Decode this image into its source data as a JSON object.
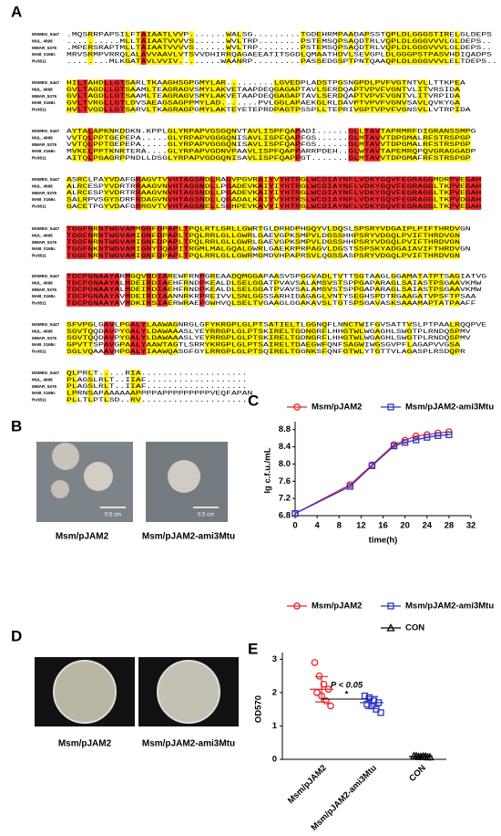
{
  "panels": {
    "A": {
      "label": "A",
      "names": [
        "MSMEG_5447",
        "MUL_4998",
        "MMAR_5376",
        "MAB_0168c",
        "Rv3811"
      ],
      "blocks": [
        [
          ".MQSRRPAPSILFTAIAATLVVP.......WALSG.........TGDEHRMPAADAPSSTQPLDLGGGSTIRELGLDEPS",
          "..........MLLTAIAATVVVVS......WVLTRP........PSTEMSQPSAQDTRLVQPLDLGGGVVVLGLDEPS..",
          ".MPERSRAPTMLLTAIAATVVVVS......WVLTRP........PSTEMSQPSAQDTRLVQPLDLGGGVVVLGLDEPS..",
          "MRVSRMPVRRQLALAVVAAVLVTSVVDHIRRQAGAEEATITSGDLQMAATHDVLSEVGPLDLGGGPSTPASVHDIQADPS",
          "........MLKGATAVLVVIV........WAANRP.........PASSEDGSPTPNTQAAQPLDLGGGVVVLELTDEPS.."
        ],
        [
          "HILTAHDLLGTSARLTKAAGHSGPGMYLAR.........LGVEDPLADSTPGSNGPDLPVFVGTNTVLLTTKPEA",
          "GVLTAGDLLGTSAAMLTEAGRAGVSMYLAKVETAAPDEQGAGAPTAVLSERDQAPTVPVFVGNTVLITVRSIDA",
          "GVLTAGDLLGTSAAMLTEAGRAGVSMYLAKVETAAPDEQGAGAPTAVLSERDQAPTVPVFVGNTVLITVRPIDA",
          "GVLTVRGLLGTLDVSAEAGSAGPPMYLAD.......PVLGGLAPAEKGLRLDAVPTVPVFVGNVSAVLQVKYGA",
          "HVLTVGDLLGTSARVLTKAGRAGPGMYLAKTEYETEPRDPAGTPSSPLLTEPRIVGPTVPVFVGNSVLLVTRPIDA"
        ],
        [
          "AYTALAPKNKDDKN.KPPLGLYRPAPVGSGQNVTAVLISPFQAPADI......GLLTAVTAPRMRFDIGRANSSMPG",
          "VVTQLPPTGEPEPA.....GLYRPAPVGGGQNISAVLISPFQAPFGS......GLMTAVVTDPGMALRFSTRSPGP",
          "VVTQLPPTGEPEPA.....GLYRPAPVGGGQNISAVLISPFQAPFGS......GLMTAVVTDPGMALRFSTRSPGP",
          "MVKELPPTKNRTERA....GLYRPAPVGDNVPAAVLISPFQAPPARRPDEH..GLWTAVTAPEMRQPQVGRAGGADP",
          "AITQLPGAGRPPNDLLDSGLYRPAPVGDGQNISAVLISPFQAPPGT.......GLMTAVVTDPGMAFRFSTRSPGP"
        ],
        [
          "ASRCLPAYVDAFGRAGVTVVHTAGSNDLRAGVPGVRAIYVYHTRGLWCDIAYNFLVDKYGQVFEGRAGGMDRPVEGAH",
          "ALRCESPYVDRTRRAAGVNVHTAGSNDLLPGADEVKAIYIYHTRGLWCDIAYNFLVDKYGQVFEGRAGGLTKPVEGAH",
          "ALRCESPYVDRTRRAAGVNVHTAGSNDLLPGADEVKAIYIYHTRGLWCDIAYNFLVDKYGQVFEGRAGGLTKPVEGAH",
          "SALRPVSGYSDRFRDAGVNVHTAGSNDLLQGADALKAIYVYHTRSLWCDIAYNFLVDKYGQVFEGRAGGLTKPVDGAH",
          "GACETPGYVDAFGRRGVTVVHTAGSNELLSGHPEVKAVYIYHTRGLWCDIAYNFLVDKYGQVFEGRAGGLTKPVEGAH"
        ],
        [
          "TGGFNRNTWGVAMMGNFDPAPLTPQLRTLGRLLGWRTGLDRHDPHGQYVLDQSLSPSRYVDGAIPLPIFTHRDVGN",
          "TGGFNRNTWGVAMIGNFDPAPLTPQLRRLGLLGWRLGAEVGPKSMPVLDGSSHHPSRYVDGQLPVIFTHRDVGN",
          "TGGFNRNTWGVAMIGNFDPAPLTPQLRRLGLLGWRLGAEVGPKSMPVLDGSSHHPSRYVDGQLPVIFTHRDVGN",
          "TGGFNKNTWGVAMIGNYDQAPITRGMLMALGQALGWRLGAEKRPRPAGVLDGSTSSPSKYADGAIAVIFTHRDVGN",
          "TGGFNRNTWGVAMIGNFDPAPLTPQLRRLGLLGWRMGMDVHPAPRSVLQGSSASPSRYVDGQLPVIFTHRDVGN"
        ],
        [
          "TDCPGNAAYARMGQVRDIAREWFRNPGREAADQMGGAPAASVSPGGVADLTVTTSGTAAGLGGAMATATPTSAGIATVG",
          "TDCPGNAAYALMDEIRDIAEHFRNDPKEALDLSELGGATPVAVSALAMSVSTSPPGAPARAGLSAIASTPSGAAVKMW",
          "TDCPGNAAYALMDEIRDIAEHFRNDPKEALDLSELGGATPVAVSALAMSVSTSPPGAPARAGLSAIASTPSGAAVKMW",
          "TDCPGNAAYAVMDEIRDIAANNRKRPREIVVLSNLGGSSARHIDAGAGLVNTYSEGHSPDTRGAAGATVPSFTPSAA",
          "TDCPGNAAYAVMDKIRSIAERWRAEPGWHVQLSELTVGAAGLGGAKAVSLTGTSPSGAVASKSAAAMAPTATPAAFF"
        ],
        [
          "SFVPGLGAVLPGALYLAAWAGNRGLGFYKRGPLGLPTSATIELTLGGNQFLNNCTWIFGVSATTVSLPTPAALRQQPVE",
          "SGVTQQDAVPYGALYLDAWAAASLYEYRRGPLGLPTSKIRELTGDNGRFLHHGTWLWGAGHLSWGTPLRNDQSPMV",
          "SGVTQQDAVPYGALYLDAWAAASLYEYRRGPLGLPTSKIRELTGDNGRFLHHGTWLWGAGHLSWGTPLRNDQSPMV",
          "GPVTTSPAVGPAALYAAWTAGTLSRRYKRGPLGLPTSAIRELTDAEGWFQNFSAGWIWGSGVPFLAGAPVVGSA",
          "SGLVQAAAVHPGALYIAAWQASGFGYLRRGPLGLPTSQIRELTGGNKSFQNFGTWLYTGTTVLAGASPLRSDQPR"
        ],
        [
          "QLPRLT.....RIA....................",
          "PLAGSLRLT..IIAF...................",
          "PLAGSLRLT..IIAF...................",
          "LPRNSAPAAAAAAPPPPAPPPPPPPPPVEQFAPAN",
          "PLLTLPTLSD..RV...................."
        ]
      ]
    },
    "B": {
      "label": "B",
      "scale_bar": "0.5 cm",
      "captions": [
        "Msm/pJAM2",
        "Msm/pJAM2-ami3Mtu"
      ]
    },
    "D": {
      "label": "D",
      "captions": [
        "Msm/pJAM2",
        "Msm/pJAM2-ami3Mtu"
      ]
    }
  },
  "chart_data": [
    {
      "type": "line",
      "panel": "C",
      "x_label": "time(h)",
      "y_label": "lg c.f.u./mL",
      "x": [
        0,
        10,
        14,
        18,
        20,
        22,
        24,
        26,
        28
      ],
      "series": [
        {
          "name": "Msm/pJAM2",
          "color": "#e8262a",
          "marker": "circle",
          "values": [
            6.85,
            7.52,
            7.98,
            8.45,
            8.55,
            8.65,
            8.68,
            8.72,
            8.75
          ]
        },
        {
          "name": "Msm/pJAM2-ami3Mtu",
          "color": "#2b35c8",
          "marker": "square",
          "values": [
            6.85,
            7.48,
            7.96,
            8.42,
            8.5,
            8.56,
            8.62,
            8.66,
            8.68
          ]
        }
      ],
      "xlim": [
        0,
        32
      ],
      "xticks": [
        0,
        4,
        8,
        12,
        16,
        20,
        24,
        28,
        32
      ],
      "ylim": [
        6.8,
        8.9
      ],
      "yticks": [
        6.8,
        7.2,
        7.6,
        {
          "value": 8,
          "label": "8.0"
        },
        8.4,
        8.8
      ]
    },
    {
      "type": "scatter",
      "panel": "E",
      "y_label": "OD570",
      "categories": [
        "Msm/pJAM2",
        "Msm/pJAM2-ami3Mtu",
        "CON"
      ],
      "series": [
        {
          "name": "Msm/pJAM2",
          "color": "#e8262a",
          "marker": "circle",
          "values": [
            2.9,
            2.5,
            2.25,
            2.1,
            2.0,
            1.9,
            1.75,
            1.6
          ],
          "mean": 2.1,
          "sd": 0.38
        },
        {
          "name": "Msm/pJAM2-ami3Mtu",
          "color": "#2b35c8",
          "marker": "square",
          "values": [
            1.9,
            1.85,
            1.75,
            1.7,
            1.65,
            1.6,
            1.5,
            1.4
          ],
          "mean": 1.7,
          "sd": 0.18
        },
        {
          "name": "CON",
          "color": "#000000",
          "marker": "triangle",
          "values": [
            0.1,
            0.08,
            0.09,
            0.07,
            0.1,
            0.08,
            0.09,
            0.07
          ],
          "mean": 0.085,
          "sd": 0.02
        }
      ],
      "annotations": [
        "P < 0.05",
        "*"
      ],
      "ylim": [
        0,
        3.2
      ],
      "yticks": [
        0,
        1,
        2,
        3
      ]
    }
  ]
}
